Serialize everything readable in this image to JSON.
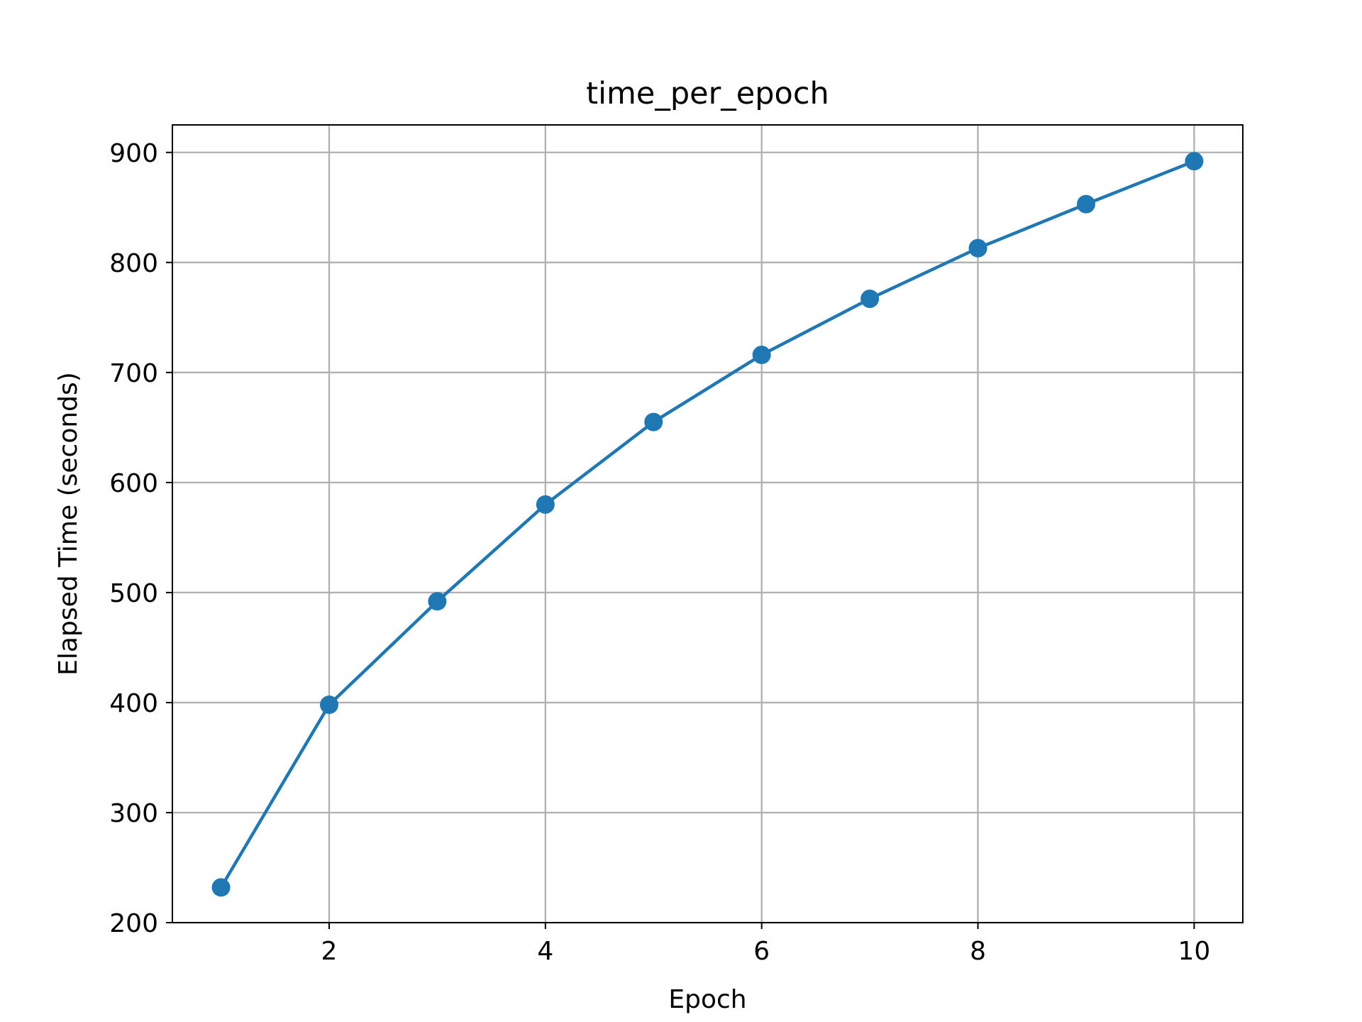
{
  "chart_data": {
    "type": "line",
    "title": "time_per_epoch",
    "xlabel": "Epoch",
    "ylabel": "Elapsed Time (seconds)",
    "x": [
      1,
      2,
      3,
      4,
      5,
      6,
      7,
      8,
      9,
      10
    ],
    "series": [
      {
        "values": [
          232,
          398,
          492,
          580,
          655,
          716,
          767,
          813,
          853,
          892
        ],
        "color": "#1f77b4",
        "marker": "circle"
      }
    ],
    "xlim": [
      0.55,
      10.45
    ],
    "ylim": [
      200,
      925
    ],
    "xticks": [
      2,
      4,
      6,
      8,
      10
    ],
    "yticks": [
      200,
      300,
      400,
      500,
      600,
      700,
      800,
      900
    ],
    "grid": true,
    "legend": false
  }
}
